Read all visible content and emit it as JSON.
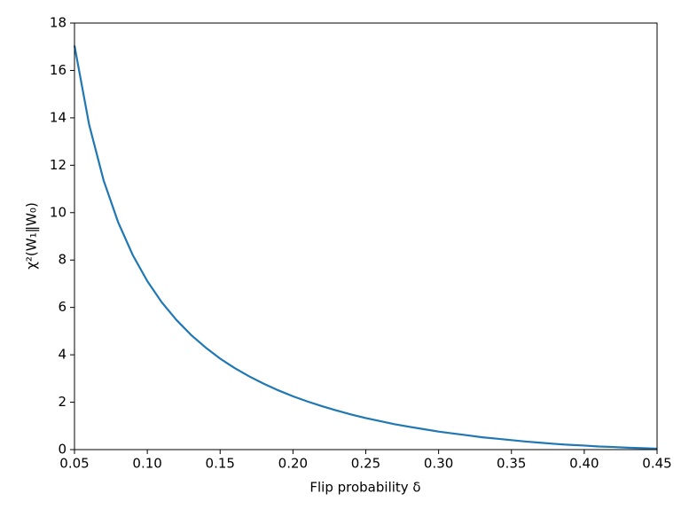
{
  "chart_data": {
    "type": "line",
    "xlabel": "Flip probability δ",
    "ylabel": "χ²(W₁‖W₀)",
    "x": [
      0.05,
      0.06,
      0.07,
      0.08,
      0.09,
      0.1,
      0.11,
      0.12,
      0.13,
      0.14,
      0.15,
      0.16,
      0.17,
      0.18,
      0.19,
      0.2,
      0.21,
      0.22,
      0.23,
      0.24,
      0.25,
      0.26,
      0.27,
      0.28,
      0.29,
      0.3,
      0.31,
      0.32,
      0.33,
      0.34,
      0.35,
      0.36,
      0.37,
      0.38,
      0.39,
      0.4,
      0.41,
      0.42,
      0.43,
      0.44,
      0.45
    ],
    "values": [
      17.05,
      13.73,
      11.36,
      9.59,
      8.21,
      7.11,
      6.21,
      5.47,
      4.84,
      4.31,
      3.84,
      3.44,
      3.09,
      2.78,
      2.5,
      2.25,
      2.03,
      1.83,
      1.65,
      1.48,
      1.33,
      1.2,
      1.07,
      0.96,
      0.86,
      0.76,
      0.68,
      0.6,
      0.52,
      0.46,
      0.4,
      0.34,
      0.29,
      0.24,
      0.2,
      0.17,
      0.13,
      0.11,
      0.08,
      0.06,
      0.04
    ],
    "color": "#1f77b4",
    "xlim": [
      0.05,
      0.45
    ],
    "xticks": [
      0.05,
      {
        "value": 0.1,
        "label": "0.10"
      },
      0.15,
      {
        "value": 0.2,
        "label": "0.20"
      },
      0.25,
      {
        "value": 0.3,
        "label": "0.30"
      },
      0.35,
      {
        "value": 0.4,
        "label": "0.40"
      },
      0.45
    ],
    "ylim": [
      0,
      18
    ],
    "yticks": [
      0,
      2,
      4,
      6,
      8,
      10,
      12,
      14,
      16,
      18
    ],
    "grid": false
  }
}
